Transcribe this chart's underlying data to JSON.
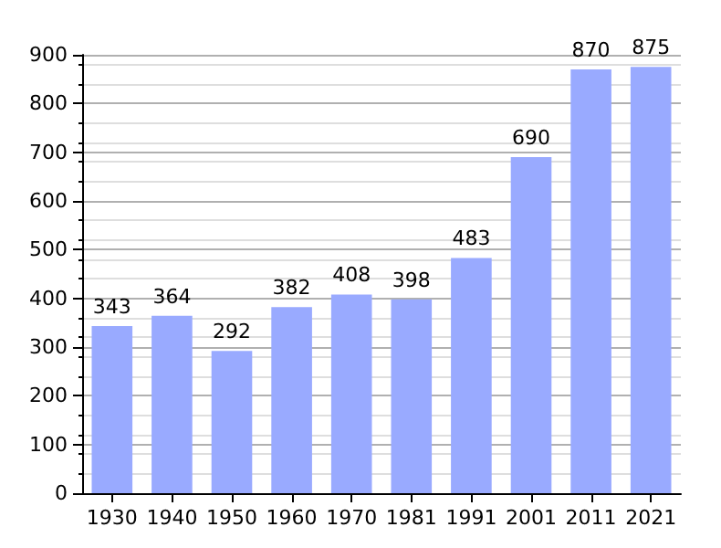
{
  "chart_data": {
    "type": "bar",
    "categories": [
      "1930",
      "1940",
      "1950",
      "1960",
      "1970",
      "1981",
      "1991",
      "2001",
      "2011",
      "2021"
    ],
    "values": [
      343,
      364,
      292,
      382,
      408,
      398,
      483,
      690,
      870,
      875
    ],
    "color": "#99aaff",
    "ylim": [
      0,
      900
    ],
    "yticks": [
      0,
      100,
      200,
      300,
      400,
      500,
      600,
      700,
      800,
      900
    ],
    "grid": true,
    "data_labels": true
  }
}
